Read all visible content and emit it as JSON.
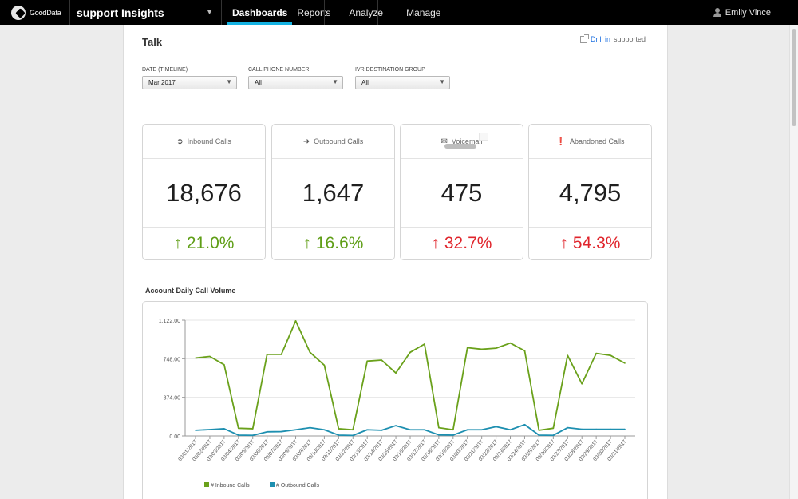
{
  "topbar": {
    "logo_text": "GoodData",
    "project_name": "support Insights",
    "nav": [
      {
        "label": "Dashboards"
      },
      {
        "label": "Reports"
      },
      {
        "label": "Analyze"
      },
      {
        "label": "Manage"
      }
    ],
    "user_name": "Emily Vince"
  },
  "page": {
    "title": "Talk",
    "drill_link": "Drill in",
    "drill_suffix": "supported"
  },
  "filters": [
    {
      "label": "DATE (TIMELINE)",
      "value": "Mar 2017"
    },
    {
      "label": "CALL PHONE NUMBER",
      "value": "All"
    },
    {
      "label": "IVR DESTINATION GROUP",
      "value": "All"
    }
  ],
  "kpis": [
    {
      "label": "Inbound Calls",
      "icon": "sign-in-icon",
      "value": "18,676",
      "change": "↑ 21.0%",
      "status_color": "#5f9e16"
    },
    {
      "label": "Outbound Calls",
      "icon": "sign-out-icon",
      "value": "1,647",
      "change": "↑ 16.6%",
      "status_color": "#5f9e16"
    },
    {
      "label": "Voicemail",
      "icon": "envelope-icon",
      "value": "475",
      "change": "↑ 32.7%",
      "status_color": "#e0252c"
    },
    {
      "label": "Abandoned Calls",
      "icon": "alert-icon",
      "value": "4,795",
      "change": "↑ 54.3%",
      "status_color": "#e0252c"
    }
  ],
  "chart_title": "Account Daily Call Volume",
  "chart_data": {
    "type": "line",
    "title": "Account Daily Call Volume",
    "xlabel": "",
    "ylabel": "",
    "ylim": [
      0,
      1122
    ],
    "y_ticks": [
      "0.00",
      "374.00",
      "748.00",
      "1,122.00"
    ],
    "y_tick_values": [
      0,
      374,
      748,
      1122
    ],
    "grid": true,
    "legend_position": "bottom-left",
    "x": [
      "03/01/2017",
      "03/02/2017",
      "03/03/2017",
      "03/04/2017",
      "03/05/2017",
      "03/06/2017",
      "03/07/2017",
      "03/08/2017",
      "03/09/2017",
      "03/10/2017",
      "03/11/2017",
      "03/12/2017",
      "03/13/2017",
      "03/14/2017",
      "03/15/2017",
      "03/16/2017",
      "03/17/2017",
      "03/18/2017",
      "03/19/2017",
      "03/20/2017",
      "03/21/2017",
      "03/22/2017",
      "03/23/2017",
      "03/24/2017",
      "03/25/2017",
      "03/26/2017",
      "03/27/2017",
      "03/28/2017",
      "03/29/2017",
      "03/30/2017",
      "03/31/2017"
    ],
    "series": [
      {
        "name": "# Inbound Calls",
        "color": "#6aa11b",
        "values": [
          755,
          770,
          690,
          75,
          70,
          790,
          790,
          1115,
          810,
          685,
          70,
          60,
          725,
          735,
          610,
          810,
          890,
          80,
          60,
          855,
          840,
          850,
          900,
          825,
          55,
          75,
          780,
          505,
          800,
          780,
          705
        ]
      },
      {
        "name": "# Outbound Calls",
        "color": "#1d8fb0",
        "values": [
          55,
          62,
          70,
          8,
          6,
          40,
          42,
          60,
          80,
          60,
          8,
          5,
          60,
          55,
          100,
          60,
          60,
          10,
          8,
          60,
          60,
          90,
          60,
          110,
          8,
          6,
          80,
          65,
          65,
          65,
          65
        ]
      }
    ]
  }
}
